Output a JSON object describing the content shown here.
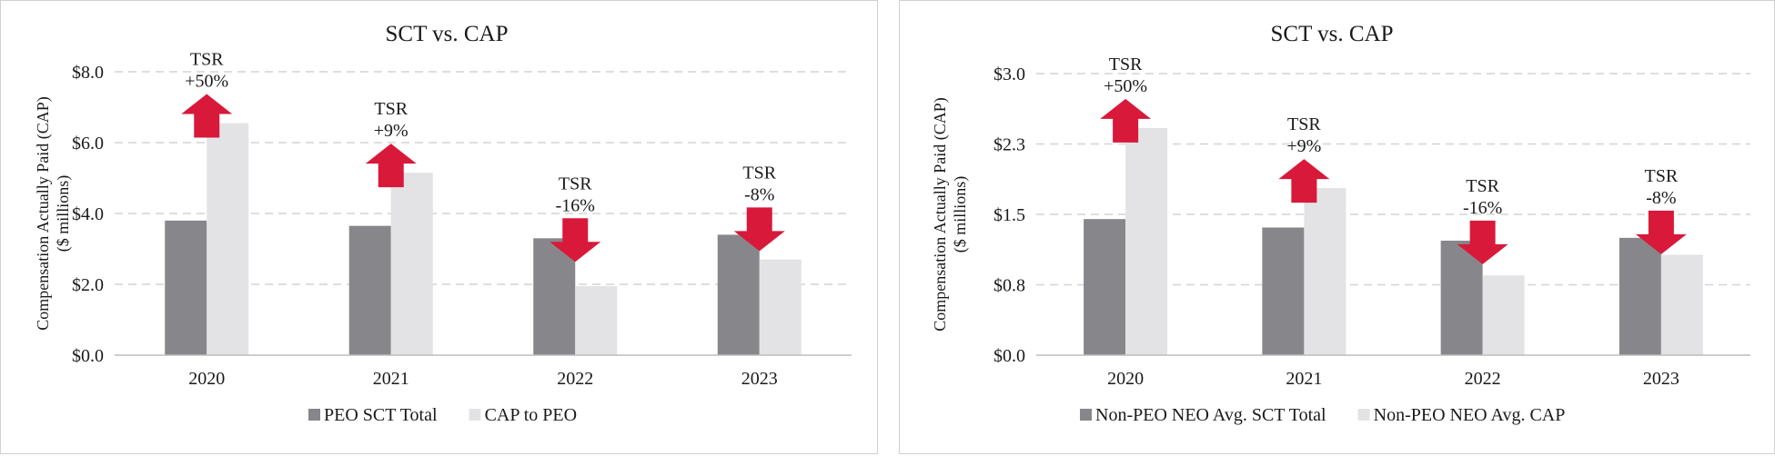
{
  "chart_data": [
    {
      "type": "bar",
      "title": "SCT vs. CAP",
      "ylabel": "Compensation Actually Paid (CAP)",
      "ylabel_sub": "($ millions)",
      "categories": [
        "2020",
        "2021",
        "2022",
        "2023"
      ],
      "ylim": [
        0,
        8
      ],
      "yticks": [
        0,
        2,
        4,
        6,
        8
      ],
      "ytick_labels": [
        "$0.0",
        "$2.0",
        "$4.0",
        "$6.0",
        "$8.0"
      ],
      "grid": true,
      "legend_position": "bottom",
      "series": [
        {
          "name": "PEO SCT Total",
          "color": "#87878b",
          "values": [
            3.8,
            3.65,
            3.3,
            3.4
          ]
        },
        {
          "name": "CAP to PEO",
          "color": "#e3e3e5",
          "values": [
            6.55,
            5.15,
            1.95,
            2.7
          ]
        }
      ],
      "annotations": [
        {
          "label": "TSR",
          "value": "+50%",
          "direction": "up",
          "color": "#d8193a"
        },
        {
          "label": "TSR",
          "value": "+9%",
          "direction": "up",
          "color": "#d8193a"
        },
        {
          "label": "TSR",
          "value": "-16%",
          "direction": "down",
          "color": "#d8193a"
        },
        {
          "label": "TSR",
          "value": "-8%",
          "direction": "down",
          "color": "#d8193a"
        }
      ]
    },
    {
      "type": "bar",
      "title": "SCT vs. CAP",
      "ylabel": "Compensation Actually Paid (CAP)",
      "ylabel_sub": "($ millions)",
      "categories": [
        "2020",
        "2021",
        "2022",
        "2023"
      ],
      "ylim": [
        0,
        3.0
      ],
      "yticks": [
        0,
        0.75,
        1.5,
        2.25,
        3.0
      ],
      "ytick_labels": [
        "$0.0",
        "$0.8",
        "$1.5",
        "$2.3",
        "$3.0"
      ],
      "grid": true,
      "legend_position": "bottom",
      "series": [
        {
          "name": "Non-PEO NEO Avg. SCT Total",
          "color": "#87878b",
          "values": [
            1.45,
            1.36,
            1.22,
            1.25
          ]
        },
        {
          "name": "Non-PEO NEO Avg. CAP",
          "color": "#e3e3e5",
          "values": [
            2.42,
            1.78,
            0.85,
            1.07
          ]
        }
      ],
      "annotations": [
        {
          "label": "TSR",
          "value": "+50%",
          "direction": "up",
          "color": "#d8193a"
        },
        {
          "label": "TSR",
          "value": "+9%",
          "direction": "up",
          "color": "#d8193a"
        },
        {
          "label": "TSR",
          "value": "-16%",
          "direction": "down",
          "color": "#d8193a"
        },
        {
          "label": "TSR",
          "value": "-8%",
          "direction": "down",
          "color": "#d8193a"
        }
      ]
    }
  ]
}
